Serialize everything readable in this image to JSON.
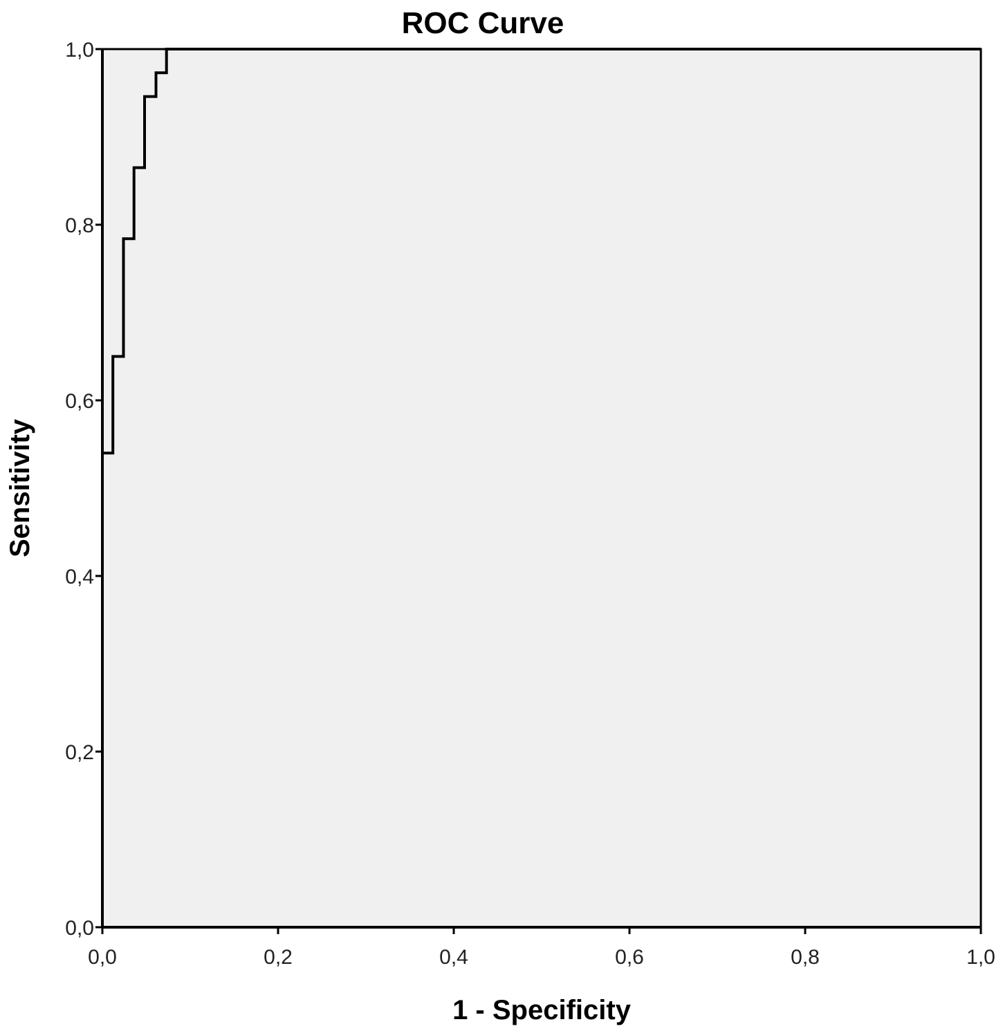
{
  "chart_data": {
    "type": "line",
    "title": "ROC Curve",
    "xlabel": "1 - Specificity",
    "ylabel": "Sensitivity",
    "xlim": [
      0,
      1
    ],
    "ylim": [
      0,
      1
    ],
    "x_ticks": [
      "0,0",
      "0,2",
      "0,4",
      "0,6",
      "0,8",
      "1,0"
    ],
    "y_ticks": [
      "0,0",
      "0,2",
      "0,4",
      "0,6",
      "0,8",
      "1,0"
    ],
    "x_tick_values": [
      0,
      0.2,
      0.4,
      0.6,
      0.8,
      1.0
    ],
    "y_tick_values": [
      0,
      0.2,
      0.4,
      0.6,
      0.8,
      1.0
    ],
    "grid": false,
    "legend": "none",
    "series": [
      {
        "step": true,
        "x": [
          0.0,
          0.0,
          0.012,
          0.012,
          0.024,
          0.024,
          0.036,
          0.036,
          0.048,
          0.048,
          0.061,
          0.061,
          0.073,
          0.073,
          1.0
        ],
        "y": [
          0.0,
          0.54,
          0.54,
          0.65,
          0.65,
          0.784,
          0.784,
          0.865,
          0.865,
          0.946,
          0.946,
          0.973,
          0.973,
          1.0,
          1.0
        ]
      }
    ],
    "colors": {
      "plot_bg": "#f0f0f0",
      "line": "#000000",
      "axis": "#000000"
    }
  }
}
